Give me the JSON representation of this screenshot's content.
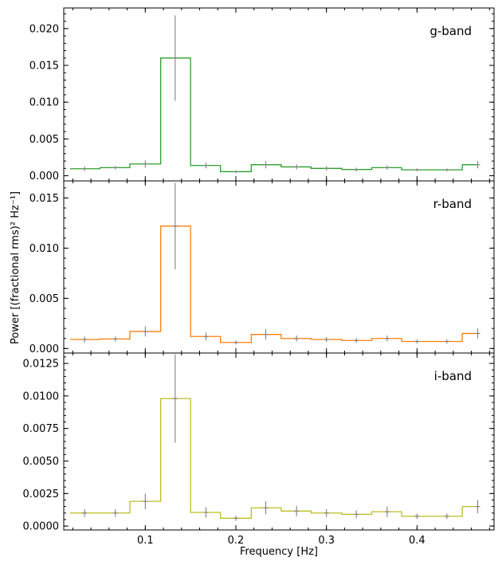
{
  "chart_data": {
    "type": "line",
    "layout": "three stacked panels sharing the x axis",
    "xlabel": "Frequency [Hz]",
    "ylabel": "Power [(fractional rms)² Hz⁻¹]",
    "xlim": [
      0.01,
      0.485
    ],
    "x_ticks": [
      "0.1",
      "0.2",
      "0.3",
      "0.4"
    ],
    "x_tick_values": [
      0.1,
      0.2,
      0.3,
      0.4
    ],
    "x": [
      0.033,
      0.067,
      0.1,
      0.133,
      0.167,
      0.2,
      0.233,
      0.267,
      0.3,
      0.333,
      0.367,
      0.4,
      0.433,
      0.467
    ],
    "bin_edges": [
      0.017,
      0.05,
      0.083,
      0.117,
      0.15,
      0.183,
      0.217,
      0.25,
      0.283,
      0.317,
      0.35,
      0.383,
      0.417,
      0.45,
      0.467
    ],
    "grid": false,
    "error_bar_color": "#808080",
    "panels": [
      {
        "label": "g-band",
        "color": "#2ca02c",
        "ylim": [
          -0.0007,
          0.0228
        ],
        "y_ticks": [
          "0.000",
          "0.005",
          "0.010",
          "0.015",
          "0.020"
        ],
        "y_tick_values": [
          0,
          0.005,
          0.01,
          0.015,
          0.02
        ],
        "values": [
          0.00095,
          0.0011,
          0.0016,
          0.016,
          0.0014,
          0.00055,
          0.0015,
          0.0012,
          0.001,
          0.00085,
          0.0011,
          0.0008,
          0.0008,
          0.0015
        ],
        "errors": [
          0.0003,
          0.00025,
          0.0005,
          0.0058,
          0.0004,
          0.0002,
          0.0005,
          0.00035,
          0.0003,
          0.00025,
          0.0003,
          0.0002,
          0.0002,
          0.0005
        ]
      },
      {
        "label": "r-band",
        "color": "#ff7f0e",
        "ylim": [
          -0.00045,
          0.0167
        ],
        "y_ticks": [
          "0.000",
          "0.005",
          "0.010",
          "0.015"
        ],
        "y_tick_values": [
          0,
          0.005,
          0.01,
          0.015
        ],
        "values": [
          0.0009,
          0.00095,
          0.0017,
          0.0122,
          0.0012,
          0.0006,
          0.0014,
          0.001,
          0.0009,
          0.0008,
          0.001,
          0.0007,
          0.0007,
          0.0015
        ],
        "errors": [
          0.0003,
          0.00025,
          0.0005,
          0.0043,
          0.0004,
          0.0002,
          0.0005,
          0.0003,
          0.00025,
          0.00025,
          0.0003,
          0.0002,
          0.0002,
          0.0005
        ]
      },
      {
        "label": "i-band",
        "color": "#bcbd22",
        "ylim": [
          -0.0003,
          0.0133
        ],
        "y_ticks": [
          "0.0000",
          "0.0025",
          "0.0050",
          "0.0075",
          "0.0100",
          "0.0125"
        ],
        "y_tick_values": [
          0,
          0.0025,
          0.005,
          0.0075,
          0.01,
          0.0125
        ],
        "values": [
          0.001,
          0.001,
          0.0019,
          0.0098,
          0.00105,
          0.0006,
          0.0014,
          0.00115,
          0.001,
          0.0009,
          0.0011,
          0.00075,
          0.00075,
          0.0015
        ],
        "errors": [
          0.0003,
          0.0003,
          0.0006,
          0.0034,
          0.0004,
          0.0002,
          0.0005,
          0.0004,
          0.0003,
          0.0003,
          0.0004,
          0.0002,
          0.0002,
          0.0005
        ]
      }
    ]
  }
}
